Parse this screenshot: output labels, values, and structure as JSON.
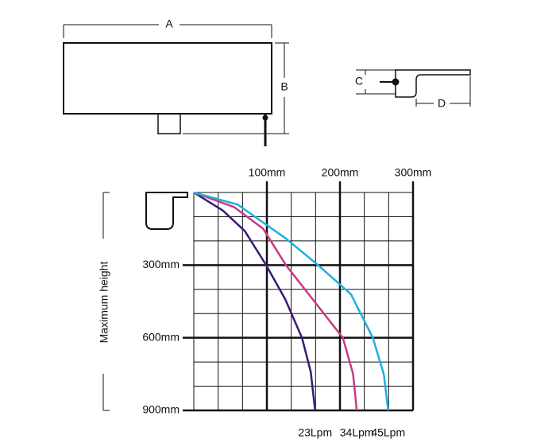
{
  "drawing": {
    "dimension_labels": [
      "A",
      "B",
      "C",
      "D"
    ]
  },
  "chart_data": {
    "type": "line",
    "y_label": "Maximum height",
    "xlim": [
      0,
      300
    ],
    "ylim": [
      0,
      900
    ],
    "y_inverted": true,
    "xticks": [
      {
        "value": 100,
        "label": "100mm"
      },
      {
        "value": 200,
        "label": "200mm"
      },
      {
        "value": 300,
        "label": "300mm"
      }
    ],
    "yticks": [
      {
        "value": 300,
        "label": "300mm"
      },
      {
        "value": 600,
        "label": "600mm"
      },
      {
        "value": 900,
        "label": "900mm"
      }
    ],
    "grid": true,
    "grid_divisions": 9,
    "series": [
      {
        "name": "23Lpm",
        "color": "#3b1a7a",
        "x": [
          0,
          40,
          70,
          99,
          125,
          148,
          160,
          166
        ],
        "values": [
          0,
          75,
          160,
          300,
          440,
          600,
          740,
          900
        ]
      },
      {
        "name": "34Lpm",
        "color": "#c93a82",
        "x": [
          0,
          55,
          95,
          126,
          165,
          204,
          218,
          223
        ],
        "values": [
          0,
          60,
          150,
          300,
          450,
          600,
          750,
          900
        ]
      },
      {
        "name": "45Lpm",
        "color": "#1bb0e0",
        "x": [
          0,
          60,
          126,
          170,
          215,
          245,
          260,
          266
        ],
        "values": [
          0,
          50,
          190,
          300,
          420,
          600,
          750,
          900
        ]
      }
    ]
  }
}
